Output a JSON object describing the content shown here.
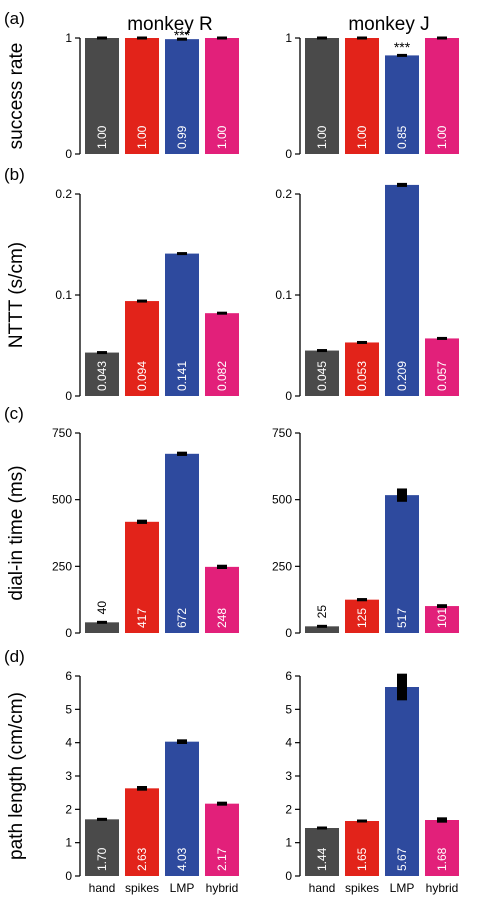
{
  "colors": {
    "hand": "#4a4a4a",
    "spikes": "#e2231a",
    "LMP": "#2e4a9e",
    "hybrid": "#e2207a",
    "errorbar": "#000000",
    "axis": "#000000"
  },
  "column_titles": [
    "monkey R",
    "monkey J"
  ],
  "chart_data": [
    {
      "type": "bar",
      "panel": "(a)",
      "monkey": "monkey R",
      "ylabel": "success rate",
      "categories": [
        "hand",
        "spikes",
        "LMP",
        "hybrid"
      ],
      "values": [
        1.0,
        1.0,
        0.99,
        1.0
      ],
      "value_labels": [
        "1.00",
        "1.00",
        "0.99",
        "1.00"
      ],
      "errors": [
        0,
        0,
        0.005,
        0
      ],
      "annotation": {
        "category_index": 2,
        "text": "***"
      },
      "ylim": [
        0,
        1
      ],
      "yticks": [
        0,
        1
      ],
      "ytick_labels": [
        "0",
        "1"
      ]
    },
    {
      "type": "bar",
      "panel": "",
      "monkey": "monkey J",
      "categories": [
        "hand",
        "spikes",
        "LMP",
        "hybrid"
      ],
      "values": [
        1.0,
        1.0,
        0.85,
        1.0
      ],
      "value_labels": [
        "1.00",
        "1.00",
        "0.85",
        "1.00"
      ],
      "errors": [
        0,
        0,
        0.01,
        0
      ],
      "annotation": {
        "category_index": 2,
        "text": "***"
      },
      "ylim": [
        0,
        1
      ],
      "yticks": [
        0,
        1
      ],
      "ytick_labels": [
        "0",
        "1"
      ]
    },
    {
      "type": "bar",
      "panel": "(b)",
      "monkey": "monkey R",
      "ylabel": "NTTT (s/cm)",
      "categories": [
        "hand",
        "spikes",
        "LMP",
        "hybrid"
      ],
      "values": [
        0.043,
        0.094,
        0.141,
        0.082
      ],
      "value_labels": [
        "0.043",
        "0.094",
        "0.141",
        "0.082"
      ],
      "errors": [
        0.0005,
        0.001,
        0.001,
        0.001
      ],
      "ylim": [
        0,
        0.2
      ],
      "yticks": [
        0,
        0.1,
        0.2
      ],
      "ytick_labels": [
        "0",
        "0.1",
        "0.2"
      ]
    },
    {
      "type": "bar",
      "panel": "",
      "monkey": "monkey J",
      "categories": [
        "hand",
        "spikes",
        "LMP",
        "hybrid"
      ],
      "values": [
        0.045,
        0.053,
        0.209,
        0.057
      ],
      "value_labels": [
        "0.045",
        "0.053",
        "0.209",
        "0.057"
      ],
      "errors": [
        0.0005,
        0.0005,
        0.002,
        0.001
      ],
      "ylim": [
        0,
        0.2
      ],
      "yticks": [
        0,
        0.1,
        0.2
      ],
      "ytick_labels": [
        "0",
        "0.1",
        "0.2"
      ]
    },
    {
      "type": "bar",
      "panel": "(c)",
      "monkey": "monkey R",
      "ylabel": "dial-in time (ms)",
      "categories": [
        "hand",
        "spikes",
        "LMP",
        "hybrid"
      ],
      "values": [
        40,
        417,
        672,
        248
      ],
      "value_labels": [
        "40",
        "417",
        "672",
        "248"
      ],
      "errors": [
        2,
        8,
        8,
        8
      ],
      "label_outside": [
        true,
        false,
        false,
        false
      ],
      "ylim": [
        0,
        750
      ],
      "yticks": [
        0,
        250,
        500,
        750
      ],
      "ytick_labels": [
        "0",
        "250",
        "500",
        "750"
      ]
    },
    {
      "type": "bar",
      "panel": "",
      "monkey": "monkey J",
      "categories": [
        "hand",
        "spikes",
        "LMP",
        "hybrid"
      ],
      "values": [
        25,
        125,
        517,
        101
      ],
      "value_labels": [
        "25",
        "125",
        "517",
        "101"
      ],
      "errors": [
        2,
        6,
        25,
        7
      ],
      "label_outside": [
        true,
        false,
        false,
        false
      ],
      "ylim": [
        0,
        750
      ],
      "yticks": [
        0,
        250,
        500,
        750
      ],
      "ytick_labels": [
        "0",
        "250",
        "500",
        "750"
      ]
    },
    {
      "type": "bar",
      "panel": "(d)",
      "monkey": "monkey R",
      "ylabel": "path length (cm/cm)",
      "categories": [
        "hand",
        "spikes",
        "LMP",
        "hybrid"
      ],
      "values": [
        1.7,
        2.63,
        4.03,
        2.17
      ],
      "value_labels": [
        "1.70",
        "2.63",
        "4.03",
        "2.17"
      ],
      "errors": [
        0.02,
        0.07,
        0.07,
        0.06
      ],
      "ylim": [
        0,
        6
      ],
      "yticks": [
        0,
        1,
        2,
        3,
        4,
        5,
        6
      ],
      "ytick_labels": [
        "0",
        "1",
        "2",
        "3",
        "4",
        "5",
        "6"
      ],
      "show_xticklabels": true
    },
    {
      "type": "bar",
      "panel": "",
      "monkey": "monkey J",
      "categories": [
        "hand",
        "spikes",
        "LMP",
        "hybrid"
      ],
      "values": [
        1.44,
        1.65,
        5.67,
        1.68
      ],
      "value_labels": [
        "1.44",
        "1.65",
        "5.67",
        "1.68"
      ],
      "errors": [
        0.02,
        0.03,
        0.4,
        0.08
      ],
      "ylim": [
        0,
        6
      ],
      "yticks": [
        0,
        1,
        2,
        3,
        4,
        5,
        6
      ],
      "ytick_labels": [
        "0",
        "1",
        "2",
        "3",
        "4",
        "5",
        "6"
      ],
      "show_xticklabels": true
    }
  ]
}
